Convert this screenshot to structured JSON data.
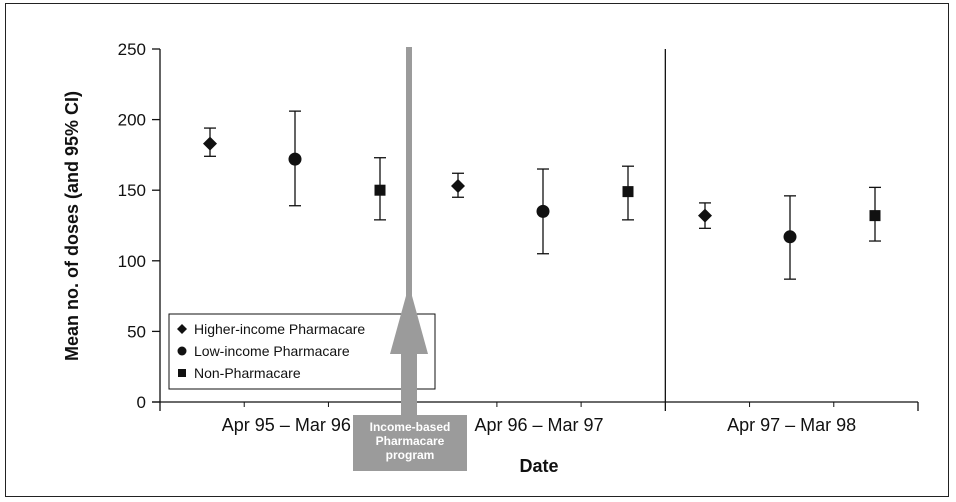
{
  "chart_data": {
    "type": "scatter",
    "ylabel": "Mean no. of doses (and 95% CI)",
    "xlabel": "Date",
    "ylim": [
      0,
      250
    ],
    "yticks": [
      "0",
      "50",
      "100",
      "150",
      "200",
      "250"
    ],
    "grid": false,
    "legend_position": "bottom-left",
    "categories": [
      "Apr 95 – Mar 96",
      "Apr 96 – Mar 97",
      "Apr 97 – Mar 98"
    ],
    "series": [
      {
        "name": "Higher-income Pharmacare",
        "marker": "diamond",
        "values": [
          183,
          153,
          132
        ],
        "ci_low": [
          174,
          145,
          123
        ],
        "ci_high": [
          194,
          162,
          141
        ]
      },
      {
        "name": "Low-income Pharmacare",
        "marker": "circle",
        "values": [
          172,
          135,
          117
        ],
        "ci_low": [
          139,
          105,
          87
        ],
        "ci_high": [
          206,
          165,
          146
        ]
      },
      {
        "name": "Non-Pharmacare",
        "marker": "square",
        "values": [
          150,
          149,
          132
        ],
        "ci_low": [
          129,
          129,
          114
        ],
        "ci_high": [
          173,
          167,
          152
        ]
      }
    ],
    "annotation": {
      "lines": [
        "Income-based",
        "Pharmacare",
        "program"
      ],
      "color": "#9b9b9b"
    }
  }
}
